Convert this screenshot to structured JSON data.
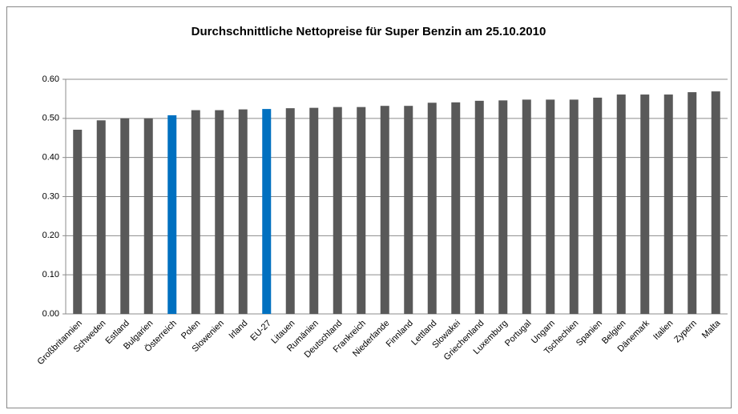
{
  "chart_data": {
    "type": "bar",
    "title": "Durchschnittliche Nettopreise für Super Benzin am 25.10.2010",
    "categories": [
      "Großbritannien",
      "Schweden",
      "Estland",
      "Bulgarien",
      "Österreich",
      "Polen",
      "Slowenien",
      "Irland",
      "EU-27",
      "Litauen",
      "Rumänien",
      "Deutschland",
      "Frankreich",
      "Niederlande",
      "Finnland",
      "Lettland",
      "Slowakei",
      "Griechenland",
      "Luxemburg",
      "Portugal",
      "Ungarn",
      "Tschechien",
      "Spanien",
      "Belgien",
      "Dänemark",
      "Italien",
      "Zypern",
      "Malta"
    ],
    "values": [
      0.471,
      0.495,
      0.5,
      0.5,
      0.508,
      0.521,
      0.521,
      0.523,
      0.524,
      0.526,
      0.527,
      0.529,
      0.529,
      0.532,
      0.532,
      0.54,
      0.541,
      0.545,
      0.546,
      0.548,
      0.548,
      0.548,
      0.553,
      0.561,
      0.561,
      0.561,
      0.567,
      0.569
    ],
    "colors": [
      "#595959",
      "#595959",
      "#595959",
      "#595959",
      "#0070c0",
      "#595959",
      "#595959",
      "#595959",
      "#0070c0",
      "#595959",
      "#595959",
      "#595959",
      "#595959",
      "#595959",
      "#595959",
      "#595959",
      "#595959",
      "#595959",
      "#595959",
      "#595959",
      "#595959",
      "#595959",
      "#595959",
      "#595959",
      "#595959",
      "#595959",
      "#595959",
      "#595959"
    ],
    "ylim": [
      0,
      0.6
    ],
    "yticks": [
      {
        "value": 0,
        "label": "0.00"
      },
      {
        "value": 0.1,
        "label": "0.10"
      },
      {
        "value": 0.2,
        "label": "0.20"
      },
      {
        "value": 0.3,
        "label": "0.30"
      },
      {
        "value": 0.4,
        "label": "0.40"
      },
      {
        "value": 0.5,
        "label": "0.50"
      },
      {
        "value": 0.6,
        "label": "0.60"
      }
    ],
    "grid": true
  }
}
